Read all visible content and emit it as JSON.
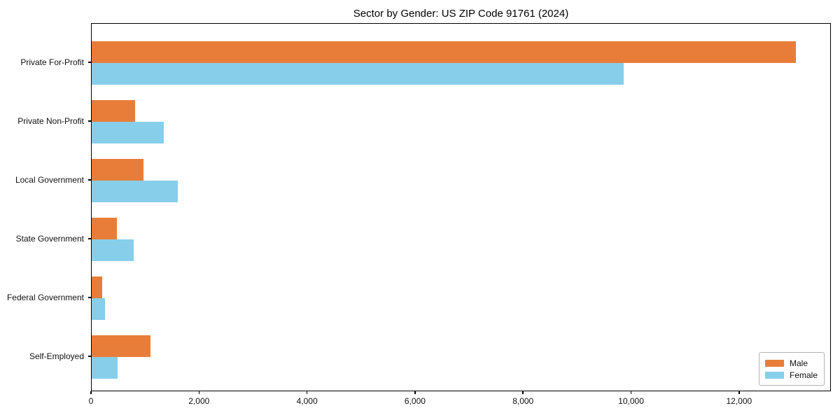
{
  "title": "Sector by Gender: US ZIP Code 91761 (2024)",
  "chart_data": {
    "type": "bar",
    "orientation": "horizontal",
    "title": "Sector by Gender: US ZIP Code 91761 (2024)",
    "categories": [
      "Private For-Profit",
      "Private Non-Profit",
      "Local Government",
      "State Government",
      "Federal Government",
      "Self-Employed"
    ],
    "series": [
      {
        "name": "Male",
        "color": "#e87d3a",
        "values": [
          13040,
          800,
          960,
          460,
          200,
          1090
        ]
      },
      {
        "name": "Female",
        "color": "#87ceeb",
        "values": [
          9850,
          1340,
          1600,
          780,
          250,
          480
        ]
      }
    ],
    "xlabel": "",
    "ylabel": "",
    "xlim": [
      0,
      13700
    ],
    "xticks": [
      0,
      2000,
      4000,
      6000,
      8000,
      10000,
      12000
    ],
    "xtick_labels": [
      "0",
      "2,000",
      "4,000",
      "6,000",
      "8,000",
      "10,000",
      "12,000"
    ],
    "grid": false,
    "legend_position": "lower right",
    "bar_order_note": "Male bar drawn above Female bar within each category group"
  }
}
